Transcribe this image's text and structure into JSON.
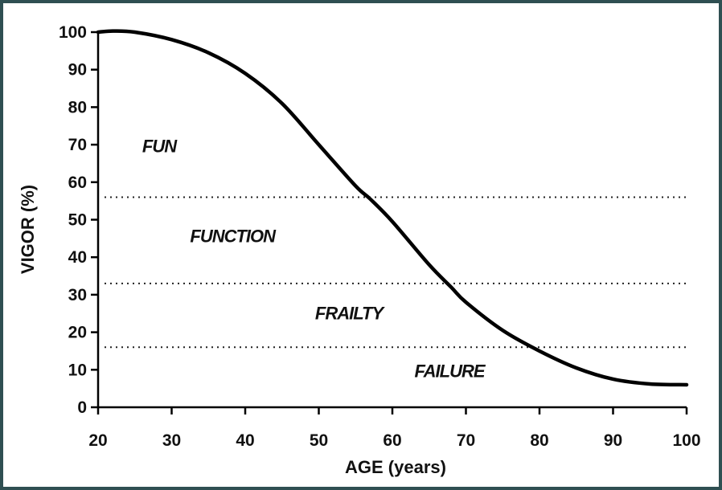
{
  "chart_data": {
    "type": "line",
    "xlabel": "AGE (years)",
    "ylabel": "VIGOR (%)",
    "xlim": [
      20,
      100
    ],
    "ylim": [
      0,
      100
    ],
    "xticks": [
      "20",
      "30",
      "40",
      "50",
      "60",
      "70",
      "80",
      "90",
      "100"
    ],
    "yticks": [
      "0",
      "10",
      "20",
      "30",
      "40",
      "50",
      "60",
      "70",
      "80",
      "90",
      "100"
    ],
    "grid": false,
    "series": [
      {
        "x": [
          20,
          22,
          25,
          30,
          35,
          40,
          45,
          50,
          55,
          57,
          60,
          65,
          68,
          70,
          75,
          80,
          85,
          90,
          95,
          100
        ],
        "y": [
          100,
          100.3,
          100,
          98,
          94.5,
          89,
          81,
          70,
          59,
          55.5,
          49.5,
          38,
          32,
          28,
          20.5,
          15,
          10.5,
          7.5,
          6.2,
          6
        ]
      }
    ],
    "thresholds": [
      56,
      33,
      16
    ],
    "zones": [
      {
        "label": "FUN",
        "x": 26,
        "y": 68
      },
      {
        "label": "FUNCTION",
        "x": 32.5,
        "y": 44
      },
      {
        "label": "FRAILTY",
        "x": 49.5,
        "y": 23.5
      },
      {
        "label": "FAILURE",
        "x": 63,
        "y": 8
      }
    ]
  }
}
